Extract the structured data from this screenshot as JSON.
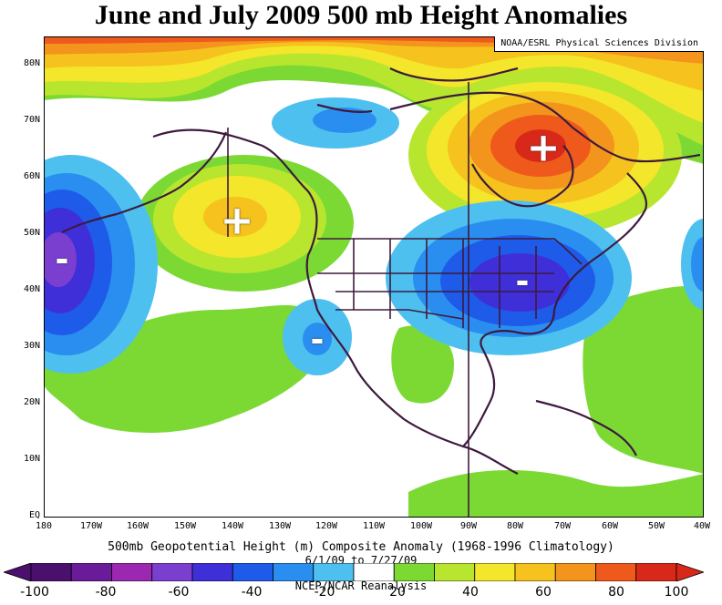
{
  "title": "June and July 2009 500 mb Height Anomalies",
  "credit": "NOAA/ESRL Physical Sciences Division",
  "y_labels": [
    "80N",
    "70N",
    "60N",
    "50N",
    "40N",
    "30N",
    "20N",
    "10N",
    "EQ"
  ],
  "x_labels": [
    "180",
    "170W",
    "160W",
    "150W",
    "140W",
    "130W",
    "120W",
    "110W",
    "100W",
    "90W",
    "80W",
    "70W",
    "60W",
    "50W",
    "40W"
  ],
  "caption1": "500mb Geopotential Height (m) Composite Anomaly (1968-1996 Climatology)",
  "caption2": "6/1/09 to 7/27/09",
  "caption3": "NCEP/NCAR Reanalysis",
  "colorbar": {
    "labels": [
      "-100",
      "-80",
      "-60",
      "-40",
      "-20",
      "20",
      "40",
      "60",
      "80",
      "100"
    ],
    "colors": [
      "#4b0f6e",
      "#6a1b9a",
      "#9c27b0",
      "#7b3fd0",
      "#3f2fd8",
      "#1e5be8",
      "#2a8ef0",
      "#4dc0f0",
      "#ffffff",
      "#7cd934",
      "#b8e62e",
      "#f4e62a",
      "#f6c21e",
      "#f3941c",
      "#ef5a1c",
      "#d8281a"
    ]
  },
  "markers": [
    {
      "symbol": "+",
      "label": "plus"
    },
    {
      "symbol": "+",
      "label": "plus"
    },
    {
      "symbol": "-",
      "label": "minus"
    },
    {
      "symbol": "-",
      "label": "minus"
    },
    {
      "symbol": "-",
      "label": "minus"
    }
  ]
}
